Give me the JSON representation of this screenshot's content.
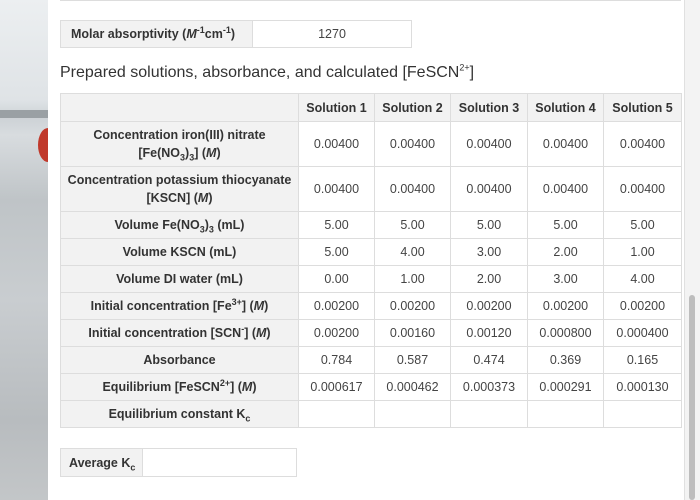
{
  "molar": {
    "label": "Molar absorptivity",
    "unit_symbol": "M",
    "unit_exp1": "-1",
    "unit_cm": "cm",
    "unit_exp2": "-1",
    "value": "1270"
  },
  "table_title": {
    "text": "Prepared solutions, absorbance, and calculated [FeSCN",
    "sup": "2+",
    "close": "]"
  },
  "columns": [
    "Solution 1",
    "Solution 2",
    "Solution 3",
    "Solution 4",
    "Solution 5"
  ],
  "rows": {
    "conc_fe": {
      "label_a": "Concentration iron(III) nitrate",
      "label_b1": "[Fe(NO",
      "sub1": "3",
      "label_b2": ")",
      "sub2": "3",
      "label_b3": "] (",
      "unit": "M",
      "label_b4": ")",
      "values": [
        "0.00400",
        "0.00400",
        "0.00400",
        "0.00400",
        "0.00400"
      ]
    },
    "conc_kscn": {
      "label_a": "Concentration potassium thiocyanate",
      "label_b1": "[KSCN] (",
      "unit": "M",
      "label_b2": ")",
      "values": [
        "0.00400",
        "0.00400",
        "0.00400",
        "0.00400",
        "0.00400"
      ]
    },
    "vol_fe": {
      "label_a": "Volume Fe(NO",
      "sub1": "3",
      "label_b": ")",
      "sub2": "3",
      "label_c": " (mL)",
      "values": [
        "5.00",
        "5.00",
        "5.00",
        "5.00",
        "5.00"
      ]
    },
    "vol_kscn": {
      "label": "Volume KSCN (mL)",
      "values": [
        "5.00",
        "4.00",
        "3.00",
        "2.00",
        "1.00"
      ]
    },
    "vol_water": {
      "label": "Volume DI water (mL)",
      "values": [
        "0.00",
        "1.00",
        "2.00",
        "3.00",
        "4.00"
      ]
    },
    "init_fe": {
      "label_a": "Initial concentration [Fe",
      "sup": "3+",
      "label_b": "] (",
      "unit": "M",
      "label_c": ")",
      "values": [
        "0.00200",
        "0.00200",
        "0.00200",
        "0.00200",
        "0.00200"
      ]
    },
    "init_scn": {
      "label_a": "Initial concentration [SCN",
      "sup": "-",
      "label_b": "] (",
      "unit": "M",
      "label_c": ")",
      "values": [
        "0.00200",
        "0.00160",
        "0.00120",
        "0.000800",
        "0.000400"
      ]
    },
    "absorbance": {
      "label": "Absorbance",
      "values": [
        "0.784",
        "0.587",
        "0.474",
        "0.369",
        "0.165"
      ]
    },
    "eq_fescn": {
      "label_a": "Equilibrium [FeSCN",
      "sup": "2+",
      "label_b": "] (",
      "unit": "M",
      "label_c": ")",
      "values": [
        "0.000617",
        "0.000462",
        "0.000373",
        "0.000291",
        "0.000130"
      ]
    },
    "eq_kc": {
      "label_a": "Equilibrium constant K",
      "sub": "c"
    }
  },
  "average": {
    "label": "Average K",
    "sub": "c"
  }
}
